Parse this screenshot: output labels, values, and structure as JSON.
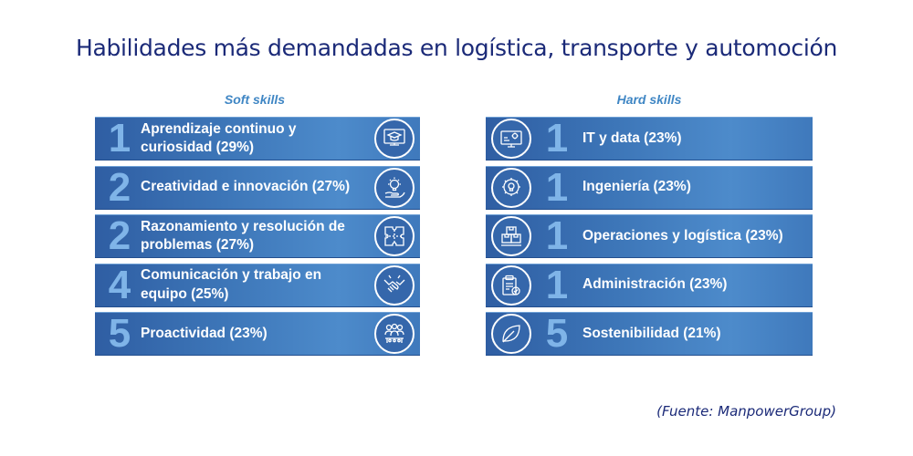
{
  "title": "Habilidades más demandadas en logística, transporte y automoción",
  "soft_skills": {
    "heading": "Soft skills",
    "items": [
      {
        "rank": "1",
        "label": "Aprendizaje continuo y curiosidad (29%)",
        "icon": "graduation-cap-icon"
      },
      {
        "rank": "2",
        "label": "Creatividad e innovación (27%)",
        "icon": "lightbulb-hand-icon"
      },
      {
        "rank": "2",
        "label": "Razonamiento y resolución de problemas (27%)",
        "icon": "puzzle-icon"
      },
      {
        "rank": "4",
        "label": "Comunicación y trabajo en equipo (25%)",
        "icon": "handshake-icon"
      },
      {
        "rank": "5",
        "label": "Proactividad (23%)",
        "icon": "team-icon"
      }
    ]
  },
  "hard_skills": {
    "heading": "Hard skills",
    "items": [
      {
        "rank": "1",
        "label": "IT y data (23%)",
        "icon": "monitor-gear-icon"
      },
      {
        "rank": "1",
        "label": "Ingeniería (23%)",
        "icon": "gear-bulb-icon"
      },
      {
        "rank": "1",
        "label": "Operaciones y logística (23%)",
        "icon": "boxes-icon"
      },
      {
        "rank": "1",
        "label": "Administración (23%)",
        "icon": "clipboard-check-icon"
      },
      {
        "rank": "5",
        "label": "Sostenibilidad (21%)",
        "icon": "leaf-icon"
      }
    ]
  },
  "source": "(Fuente: ManpowerGroup)",
  "colors": {
    "title": "#1b2a78",
    "heading": "#3f86c4",
    "bar": "#3d76b8",
    "rank": "#7fb4e8"
  }
}
